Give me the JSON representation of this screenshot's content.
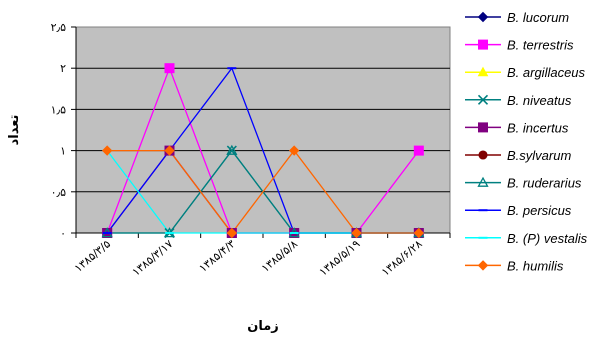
{
  "chart_data": {
    "type": "line",
    "categories": [
      "۱۳۸۵/۳/۵",
      "۱۳۸۵/۳/۱۷",
      "۱۳۸۵/۴/۳",
      "۱۳۸۵/۵/۸",
      "۱۳۸۵/۵/۱۹",
      "۱۳۸۵/۶/۲۸"
    ],
    "xlabel": "زمان",
    "ylabel": "تعداد",
    "ylim": [
      0,
      2.5
    ],
    "yticks": [
      0,
      0.5,
      1,
      1.5,
      2,
      2.5
    ],
    "ytick_labels": [
      "۰",
      "۰٫۵",
      "۱",
      "۱٫۵",
      "۲",
      "۲٫۵"
    ],
    "grid": true,
    "plot_background": "#c0c0c0",
    "legend_position": "right",
    "series": [
      {
        "name": "B. lucorum",
        "color": "#000080",
        "marker": "diamond",
        "values": [
          null,
          null,
          null,
          null,
          null,
          null
        ]
      },
      {
        "name": "B. terrestris",
        "color": "#ff00ff",
        "marker": "square",
        "values": [
          0,
          2,
          0,
          0,
          0,
          1
        ]
      },
      {
        "name": "B. argillaceus",
        "color": "#ffff00",
        "marker": "triangle",
        "values": [
          null,
          null,
          null,
          null,
          null,
          null
        ]
      },
      {
        "name": "B. niveatus",
        "color": "#008080",
        "marker": "x",
        "values": [
          0,
          0,
          1,
          0,
          0,
          0
        ]
      },
      {
        "name": "B. incertus",
        "color": "#800080",
        "marker": "square",
        "values": [
          0,
          1,
          0,
          0,
          0,
          0
        ]
      },
      {
        "name": "B.sylvarum",
        "color": "#800000",
        "marker": "circle",
        "values": [
          null,
          null,
          null,
          null,
          null,
          null
        ]
      },
      {
        "name": "B. ruderarius",
        "color": "#008080",
        "marker": "triangle-open",
        "values": [
          0,
          0,
          1,
          0,
          0,
          0
        ]
      },
      {
        "name": "B. persicus",
        "color": "#0000ff",
        "marker": "dash",
        "values": [
          0,
          1,
          2,
          0,
          0,
          0
        ]
      },
      {
        "name": "B. (P) vestalis",
        "color": "#00ffff",
        "marker": "dash",
        "values": [
          1,
          0,
          0,
          0,
          0,
          0
        ]
      },
      {
        "name": "B. humilis",
        "color": "#ff6600",
        "marker": "diamond",
        "values": [
          1,
          1,
          0,
          1,
          0,
          0
        ]
      }
    ]
  }
}
